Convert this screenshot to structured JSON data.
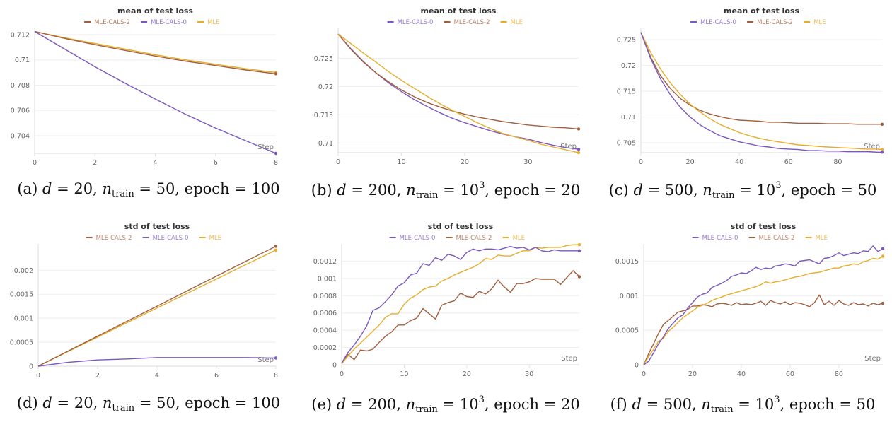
{
  "colors": {
    "MLE-CALS-0": "#7b58bd",
    "MLE-CALS-2": "#a0603f",
    "MLE": "#e6ad2c"
  },
  "captions": [
    {
      "label": "(a)",
      "d_sym": "d",
      "d": "20",
      "n_sym": "n",
      "n_sub": "train",
      "n": "50",
      "n_sup": "",
      "epoch_label": "epoch",
      "epoch": "100"
    },
    {
      "label": "(b)",
      "d_sym": "d",
      "d": "200",
      "n_sym": "n",
      "n_sub": "train",
      "n": "10",
      "n_sup": "3",
      "epoch_label": "epoch",
      "epoch": "20"
    },
    {
      "label": "(c)",
      "d_sym": "d",
      "d": "500",
      "n_sym": "n",
      "n_sub": "train",
      "n": "10",
      "n_sup": "3",
      "epoch_label": "epoch",
      "epoch": "50"
    },
    {
      "label": "(d)",
      "d_sym": "d",
      "d": "20",
      "n_sym": "n",
      "n_sub": "train",
      "n": "50",
      "n_sup": "",
      "epoch_label": "epoch",
      "epoch": "100"
    },
    {
      "label": "(e)",
      "d_sym": "d",
      "d": "200",
      "n_sym": "n",
      "n_sub": "train",
      "n": "10",
      "n_sup": "3",
      "epoch_label": "epoch",
      "epoch": "20"
    },
    {
      "label": "(f)",
      "d_sym": "d",
      "d": "500",
      "n_sym": "n",
      "n_sub": "train",
      "n": "10",
      "n_sup": "3",
      "epoch_label": "epoch",
      "epoch": "50"
    }
  ],
  "chart_data": [
    {
      "type": "line",
      "title": "mean of test loss",
      "xlabel": "Step",
      "ylabel": "",
      "legend": [
        "MLE-CALS-2",
        "MLE-CALS-0",
        "MLE"
      ],
      "legend_position": "top-center",
      "grid": true,
      "xlim": [
        0,
        8
      ],
      "ylim": [
        0.7026,
        0.7125
      ],
      "xticks": [
        "0",
        "2",
        "4",
        "6",
        "8"
      ],
      "yticks": [
        "0.704",
        "0.706",
        "0.708",
        "0.71",
        "0.712"
      ],
      "x": [
        0,
        1,
        2,
        3,
        4,
        5,
        6,
        7,
        8
      ],
      "series": [
        {
          "name": "MLE",
          "values": [
            0.71225,
            0.71175,
            0.7113,
            0.71085,
            0.7104,
            0.71,
            0.70965,
            0.7093,
            0.709
          ]
        },
        {
          "name": "MLE-CALS-2",
          "values": [
            0.71225,
            0.7117,
            0.7112,
            0.71075,
            0.7103,
            0.7099,
            0.70955,
            0.7092,
            0.7089
          ]
        },
        {
          "name": "MLE-CALS-0",
          "values": [
            0.71225,
            0.71085,
            0.70945,
            0.70815,
            0.7069,
            0.7057,
            0.7046,
            0.7036,
            0.7026
          ]
        }
      ]
    },
    {
      "type": "line",
      "title": "mean of test loss",
      "xlabel": "Step",
      "ylabel": "",
      "legend": [
        "MLE-CALS-0",
        "MLE-CALS-2",
        "MLE"
      ],
      "legend_position": "top-center",
      "grid": true,
      "xlim": [
        0,
        38
      ],
      "ylim": [
        0.7083,
        0.7303
      ],
      "xticks": [
        "0",
        "10",
        "20",
        "30"
      ],
      "yticks": [
        "0.71",
        "0.715",
        "0.72",
        "0.725"
      ],
      "x": [
        0,
        2,
        4,
        6,
        8,
        10,
        12,
        14,
        16,
        18,
        20,
        22,
        24,
        26,
        28,
        30,
        32,
        34,
        36,
        38
      ],
      "series": [
        {
          "name": "MLE-CALS-0",
          "values": [
            0.7293,
            0.7267,
            0.7244,
            0.7224,
            0.7206,
            0.7191,
            0.7177,
            0.7165,
            0.7154,
            0.7144,
            0.7136,
            0.7129,
            0.7122,
            0.7116,
            0.7111,
            0.7107,
            0.7101,
            0.7096,
            0.7092,
            0.7089
          ]
        },
        {
          "name": "MLE-CALS-2",
          "values": [
            0.7293,
            0.7266,
            0.7243,
            0.7224,
            0.7208,
            0.7194,
            0.7182,
            0.7172,
            0.7164,
            0.7157,
            0.7151,
            0.7146,
            0.7142,
            0.7138,
            0.7135,
            0.7132,
            0.713,
            0.7128,
            0.7127,
            0.7125
          ]
        },
        {
          "name": "MLE",
          "values": [
            0.7293,
            0.7276,
            0.7259,
            0.7243,
            0.7226,
            0.7211,
            0.7197,
            0.7183,
            0.717,
            0.7158,
            0.7147,
            0.7136,
            0.7126,
            0.7117,
            0.7111,
            0.7105,
            0.7098,
            0.7093,
            0.7088,
            0.7083
          ]
        }
      ]
    },
    {
      "type": "line",
      "title": "mean of test loss",
      "xlabel": "Step",
      "ylabel": "",
      "legend": [
        "MLE-CALS-0",
        "MLE-CALS-2",
        "MLE"
      ],
      "legend_position": "top-center",
      "grid": true,
      "xlim": [
        0,
        98
      ],
      "ylim": [
        0.7031,
        0.7272
      ],
      "xticks": [
        "0",
        "20",
        "40",
        "60",
        "80"
      ],
      "yticks": [
        "0.705",
        "0.71",
        "0.715",
        "0.72",
        "0.725"
      ],
      "x": [
        0,
        4,
        8,
        12,
        16,
        20,
        24,
        28,
        32,
        36,
        40,
        44,
        48,
        52,
        56,
        60,
        64,
        68,
        72,
        76,
        80,
        84,
        88,
        92,
        96,
        98
      ],
      "series": [
        {
          "name": "MLE-CALS-2",
          "values": [
            0.7264,
            0.7216,
            0.718,
            0.7155,
            0.7136,
            0.7123,
            0.7113,
            0.7106,
            0.7101,
            0.7097,
            0.7094,
            0.7093,
            0.7092,
            0.709,
            0.709,
            0.7089,
            0.7088,
            0.7088,
            0.7088,
            0.7087,
            0.7087,
            0.7087,
            0.7086,
            0.7086,
            0.7086,
            0.7086
          ]
        },
        {
          "name": "MLE",
          "values": [
            0.7264,
            0.7225,
            0.7193,
            0.7166,
            0.7144,
            0.7125,
            0.711,
            0.7097,
            0.7086,
            0.7078,
            0.707,
            0.7064,
            0.7059,
            0.7055,
            0.7052,
            0.7049,
            0.7046,
            0.7045,
            0.7043,
            0.7042,
            0.7041,
            0.704,
            0.7039,
            0.7038,
            0.7038,
            0.7037
          ]
        },
        {
          "name": "MLE-CALS-0",
          "values": [
            0.7264,
            0.7213,
            0.7174,
            0.7143,
            0.7119,
            0.71,
            0.7085,
            0.7074,
            0.7064,
            0.7058,
            0.7052,
            0.7048,
            0.7044,
            0.7042,
            0.7039,
            0.7038,
            0.7037,
            0.7035,
            0.7035,
            0.7034,
            0.7034,
            0.7033,
            0.7033,
            0.7033,
            0.7032,
            0.7032
          ]
        }
      ]
    },
    {
      "type": "line",
      "title": "std of test loss",
      "xlabel": "Step",
      "ylabel": "",
      "legend": [
        "MLE-CALS-2",
        "MLE-CALS-0",
        "MLE"
      ],
      "legend_position": "top-center",
      "grid": true,
      "xlim": [
        0,
        8
      ],
      "ylim": [
        0,
        0.00255
      ],
      "xticks": [
        "0",
        "2",
        "4",
        "6",
        "8"
      ],
      "yticks": [
        "0",
        "0.0005",
        "0.001",
        "0.0015",
        "0.002"
      ],
      "x": [
        0,
        1,
        2,
        3,
        4,
        5,
        6,
        7,
        8
      ],
      "series": [
        {
          "name": "MLE",
          "values": [
            0,
            0.000303,
            0.000606,
            0.000909,
            0.001212,
            0.001515,
            0.001818,
            0.002121,
            0.00242
          ]
        },
        {
          "name": "MLE-CALS-2",
          "values": [
            0,
            0.000313,
            0.000626,
            0.000939,
            0.001252,
            0.001565,
            0.001878,
            0.002191,
            0.0025
          ]
        },
        {
          "name": "MLE-CALS-0",
          "values": [
            0,
            8e-05,
            0.00013,
            0.00015,
            0.00018,
            0.00018,
            0.00018,
            0.00018,
            0.00017
          ]
        }
      ]
    },
    {
      "type": "line",
      "title": "std of test loss",
      "xlabel": "Step",
      "ylabel": "",
      "legend": [
        "MLE-CALS-0",
        "MLE-CALS-2",
        "MLE"
      ],
      "legend_position": "top-center",
      "grid": true,
      "xlim": [
        0,
        38
      ],
      "ylim": [
        0,
        0.0014
      ],
      "xticks": [
        "0",
        "10",
        "20",
        "30"
      ],
      "yticks": [
        "0",
        "0.0002",
        "0.0004",
        "0.0006",
        "0.0008",
        "0.001",
        "0.0012"
      ],
      "x": [
        0,
        1,
        2,
        3,
        4,
        5,
        6,
        7,
        8,
        9,
        10,
        11,
        12,
        13,
        14,
        15,
        16,
        17,
        18,
        19,
        20,
        21,
        22,
        23,
        24,
        25,
        26,
        27,
        28,
        29,
        30,
        31,
        32,
        33,
        34,
        35,
        36,
        37,
        38
      ],
      "series": [
        {
          "name": "MLE-CALS-2",
          "values": [
            2e-05,
            0.00012,
            6e-05,
            0.00017,
            0.00016,
            0.00018,
            0.00026,
            0.00033,
            0.00038,
            0.00046,
            0.00046,
            0.00051,
            0.00054,
            0.00065,
            0.00059,
            0.00053,
            0.00069,
            0.00072,
            0.00074,
            0.00083,
            0.00079,
            0.00078,
            0.00085,
            0.00082,
            0.00088,
            0.00098,
            0.0009,
            0.00084,
            0.00094,
            0.00094,
            0.00096,
            0.001,
            0.00099,
            0.00099,
            0.00099,
            0.00093,
            0.00101,
            0.00109,
            0.00102
          ]
        },
        {
          "name": "MLE",
          "values": [
            1e-05,
            0.0001,
            0.00018,
            0.00025,
            0.00032,
            0.00039,
            0.00046,
            0.00055,
            0.00059,
            0.00059,
            0.0007,
            0.00077,
            0.00081,
            0.00087,
            0.0009,
            0.00091,
            0.00097,
            0.001,
            0.00104,
            0.00107,
            0.0011,
            0.00113,
            0.00117,
            0.00123,
            0.00122,
            0.00127,
            0.00126,
            0.00126,
            0.00129,
            0.00132,
            0.00132,
            0.00136,
            0.00135,
            0.00136,
            0.00136,
            0.00136,
            0.00138,
            0.00139,
            0.00139
          ]
        },
        {
          "name": "MLE-CALS-0",
          "values": [
            2e-05,
            0.00014,
            0.00023,
            0.00033,
            0.00045,
            0.00063,
            0.00066,
            0.00073,
            0.00081,
            0.00091,
            0.00095,
            0.00104,
            0.00106,
            0.00117,
            0.00115,
            0.00124,
            0.00121,
            0.00128,
            0.00126,
            0.00122,
            0.0013,
            0.00134,
            0.00132,
            0.00134,
            0.00134,
            0.00133,
            0.00135,
            0.00137,
            0.00135,
            0.00136,
            0.00133,
            0.00136,
            0.00132,
            0.00131,
            0.00133,
            0.00132,
            0.00132,
            0.00132,
            0.00132
          ]
        }
      ]
    },
    {
      "type": "line",
      "title": "std of test loss",
      "xlabel": "Step",
      "ylabel": "",
      "legend": [
        "MLE-CALS-0",
        "MLE-CALS-2",
        "MLE"
      ],
      "legend_position": "top-center",
      "grid": true,
      "xlim": [
        0,
        98
      ],
      "ylim": [
        0,
        0.00175
      ],
      "xticks": [
        "0",
        "20",
        "40",
        "60",
        "80"
      ],
      "yticks": [
        "0",
        "0.0005",
        "0.001",
        "0.0015"
      ],
      "x": [
        0,
        2,
        4,
        6,
        8,
        10,
        12,
        14,
        16,
        18,
        20,
        22,
        24,
        26,
        28,
        30,
        32,
        34,
        36,
        38,
        40,
        42,
        44,
        46,
        48,
        50,
        52,
        54,
        56,
        58,
        60,
        62,
        64,
        66,
        68,
        70,
        72,
        74,
        76,
        78,
        80,
        82,
        84,
        86,
        88,
        90,
        92,
        94,
        96,
        98
      ],
      "series": [
        {
          "name": "MLE-CALS-2",
          "values": [
            0,
            0.00016,
            0.0003,
            0.00045,
            0.00058,
            0.00064,
            0.0007,
            0.00076,
            0.00078,
            0.0008,
            0.00085,
            0.00085,
            0.00087,
            0.00086,
            0.00084,
            0.00088,
            0.00089,
            0.00088,
            0.00086,
            0.0009,
            0.00087,
            0.00088,
            0.00087,
            0.00089,
            0.00092,
            0.00086,
            0.00093,
            0.0009,
            0.00088,
            0.00091,
            0.00087,
            0.0009,
            0.00089,
            0.00087,
            0.00084,
            0.0009,
            0.00101,
            0.00087,
            0.00092,
            0.00086,
            0.00093,
            0.00088,
            0.00086,
            0.0009,
            0.00087,
            0.00088,
            0.00085,
            0.00089,
            0.00087,
            0.00089
          ]
        },
        {
          "name": "MLE",
          "values": [
            0,
            0.00012,
            0.00022,
            0.00034,
            0.00038,
            0.00048,
            0.00054,
            0.00061,
            0.00068,
            0.00073,
            0.00078,
            0.00083,
            0.00086,
            0.00089,
            0.00093,
            0.00096,
            0.00098,
            0.00101,
            0.00103,
            0.00105,
            0.00107,
            0.00109,
            0.00111,
            0.00113,
            0.00116,
            0.0012,
            0.00118,
            0.0012,
            0.00121,
            0.00123,
            0.00125,
            0.00127,
            0.00128,
            0.0013,
            0.00132,
            0.00133,
            0.00134,
            0.00136,
            0.00138,
            0.0014,
            0.0014,
            0.00143,
            0.00144,
            0.00146,
            0.00145,
            0.00149,
            0.00151,
            0.00154,
            0.00153,
            0.00157
          ]
        },
        {
          "name": "MLE-CALS-0",
          "values": [
            0,
            5e-05,
            0.00017,
            0.0003,
            0.0004,
            0.00052,
            0.0006,
            0.00068,
            0.00072,
            0.00082,
            0.0009,
            0.00098,
            0.00102,
            0.00104,
            0.00112,
            0.00115,
            0.00118,
            0.00122,
            0.00128,
            0.0013,
            0.00133,
            0.00132,
            0.00136,
            0.00141,
            0.00138,
            0.0014,
            0.00139,
            0.00143,
            0.00144,
            0.00146,
            0.00145,
            0.00143,
            0.0015,
            0.00151,
            0.00152,
            0.00149,
            0.00146,
            0.00154,
            0.00155,
            0.00158,
            0.00162,
            0.00158,
            0.0016,
            0.00162,
            0.00161,
            0.00165,
            0.00164,
            0.00172,
            0.00164,
            0.00168
          ]
        }
      ]
    }
  ]
}
